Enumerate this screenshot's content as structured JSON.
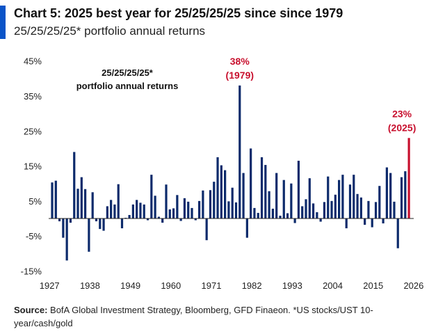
{
  "chart_data": {
    "type": "bar",
    "title": "Chart 5: 2025 best year for 25/25/25/25 since since 1979",
    "subtitle": "25/25/25/25* portfolio annual returns",
    "inner_label": [
      "25/25/25/25*",
      "portfolio annual returns"
    ],
    "xlabel": "",
    "ylabel": "",
    "ylim": [
      -15,
      45
    ],
    "yticks": [
      "45%",
      "35%",
      "25%",
      "15%",
      "5%",
      "-5%",
      "-15%"
    ],
    "ytick_values": [
      45,
      35,
      25,
      15,
      5,
      -5,
      -15
    ],
    "xticks": [
      "1927",
      "1938",
      "1949",
      "1960",
      "1971",
      "1982",
      "1993",
      "2004",
      "2015",
      "2026"
    ],
    "xtick_values": [
      1927,
      1938,
      1949,
      1960,
      1971,
      1982,
      1993,
      2004,
      2015,
      2026
    ],
    "grid": false,
    "bar_color": "#0c2a6b",
    "highlight_color": "#c8102e",
    "highlight_year": 2025,
    "annotations": [
      {
        "year": 1979,
        "line1": "38%",
        "line2": "(1979)"
      },
      {
        "year": 2025,
        "line1": "23%",
        "line2": "(2025)"
      }
    ],
    "start_year": 1928,
    "values": [
      10.3,
      10.8,
      -0.8,
      -5.5,
      -12,
      -1.2,
      19,
      8.5,
      11.8,
      8.4,
      -9.5,
      7.5,
      -0.8,
      -3,
      -3.5,
      3.5,
      5.3,
      4,
      9.8,
      -2.8,
      0.2,
      1,
      4,
      5.3,
      4.5,
      4,
      -0.5,
      12.5,
      6.5,
      0.5,
      -1.2,
      9.7,
      2.6,
      2.9,
      6.7,
      -0.7,
      5.8,
      4.8,
      3,
      -0.5,
      5,
      8,
      -6.2,
      8.1,
      10.5,
      17.5,
      15.2,
      13.8,
      4.9,
      8.8,
      4.6,
      38,
      13,
      -5.5,
      20,
      3,
      1.6,
      17.5,
      15.3,
      7.8,
      2.8,
      13,
      0.8,
      11,
      1.5,
      10,
      -1.3,
      16.5,
      3.5,
      5.5,
      11.5,
      4.3,
      1.8,
      -0.9,
      4.7,
      12,
      5,
      6.8,
      11,
      12.5,
      -2.8,
      9.7,
      12.5,
      7,
      6,
      -1.8,
      5,
      -2.5,
      4.7,
      9.3,
      -1.4,
      14.6,
      13,
      4.8,
      -8.5,
      11.8,
      13.5,
      23
    ]
  },
  "source": {
    "label": "Source:",
    "text": " BofA Global Investment Strategy, Bloomberg, GFD Finaeon. *US stocks/UST 10-year/cash/gold"
  }
}
